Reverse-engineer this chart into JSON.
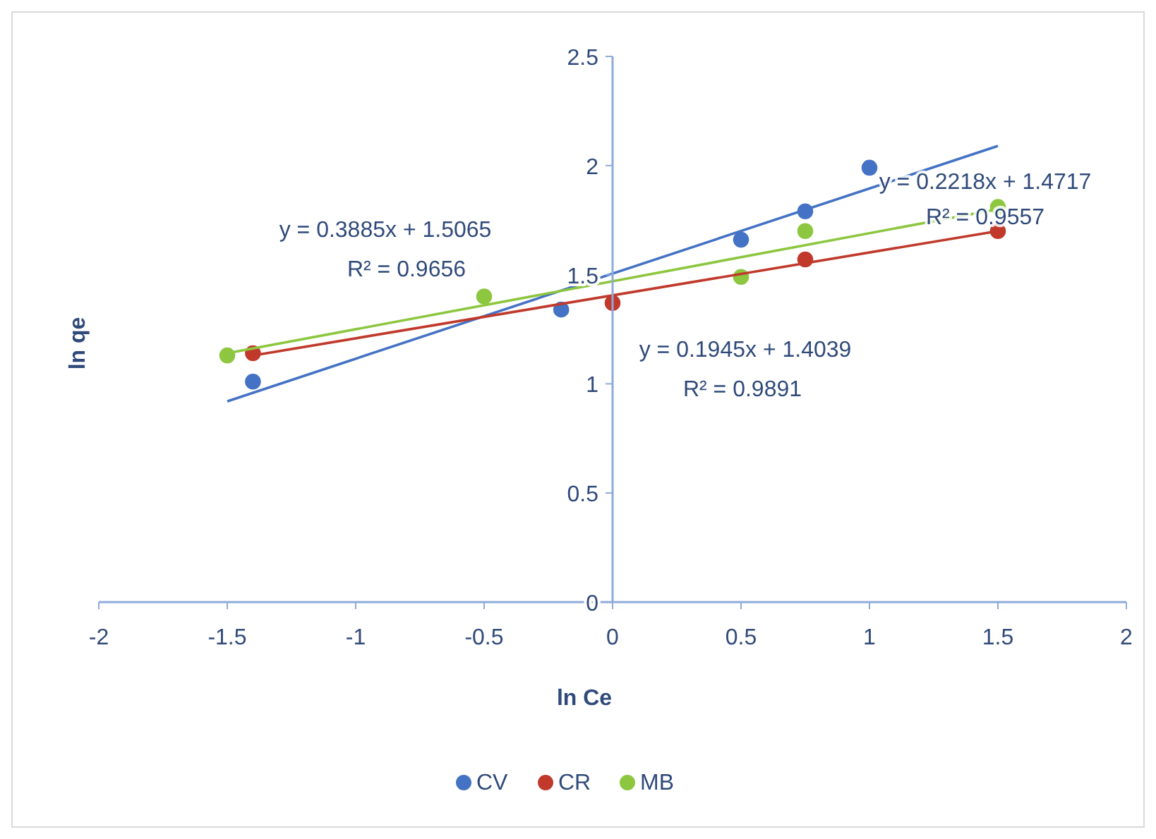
{
  "chart_data": {
    "type": "scatter",
    "xlabel": "ln Ce",
    "ylabel": "ln qe",
    "xlim": [
      -2,
      2
    ],
    "ylim": [
      0,
      2.5
    ],
    "xticks": [
      -2,
      -1.5,
      -1,
      -0.5,
      0,
      0.5,
      1,
      1.5,
      2
    ],
    "yticks": [
      0,
      0.5,
      1,
      1.5,
      2,
      2.5
    ],
    "grid": false,
    "legend": "bottom",
    "marker": "circle",
    "series": [
      {
        "name": "CV",
        "color": "#4472c4",
        "x": [
          -1.4,
          -0.2,
          0.5,
          0.75,
          1
        ],
        "values": [
          1.01,
          1.34,
          1.66,
          1.79,
          1.99
        ]
      },
      {
        "name": "CR",
        "color": "#c0392b",
        "x": [
          -1.4,
          0,
          0.75,
          1.5
        ],
        "values": [
          1.14,
          1.37,
          1.57,
          1.7
        ]
      },
      {
        "name": "MB",
        "color": "#8dc63f",
        "x": [
          -1.5,
          -0.5,
          0.5,
          0.75,
          1.5
        ],
        "values": [
          1.13,
          1.4,
          1.49,
          1.7,
          1.81
        ]
      },
      {
        "type": "line",
        "color": "#4472c4",
        "marker": "none",
        "x": [
          -1.5,
          1.5
        ],
        "values": [
          0.92,
          2.09
        ]
      },
      {
        "type": "line",
        "color": "#c0392b",
        "marker": "none",
        "x": [
          -1.4,
          1.5
        ],
        "values": [
          1.13,
          1.7
        ]
      },
      {
        "type": "line",
        "color": "#8dc63f",
        "marker": "none",
        "x": [
          -1.5,
          1.5
        ],
        "values": [
          1.14,
          1.8
        ]
      }
    ],
    "annotations": [
      "y = 0.3885x + 1.5065",
      "R² = 0.9656",
      "y = 0.1945x + 1.4039",
      "R² = 0.9891",
      "y = 0.2218x + 1.4717",
      "R² = 0.9557"
    ]
  }
}
